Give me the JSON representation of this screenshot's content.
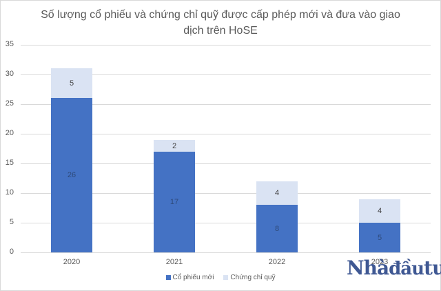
{
  "chart_data": {
    "type": "bar",
    "stacked": true,
    "title": "Số lượng cổ phiếu và chứng chỉ quỹ được cấp phép mới và đưa vào giao dịch trên HoSE",
    "title_lines": [
      "Số lượng cổ phiếu và chứng chỉ quỹ được cấp phép mới và đưa vào giao",
      "dịch trên HoSE"
    ],
    "categories": [
      "2020",
      "2021",
      "2022",
      "2023"
    ],
    "series": [
      {
        "name": "Cổ phiếu mới",
        "color": "#4472C4",
        "values": [
          26,
          17,
          8,
          5
        ]
      },
      {
        "name": "Chứng chỉ quỹ",
        "color": "#DAE3F3",
        "values": [
          5,
          2,
          4,
          4
        ]
      }
    ],
    "xlabel": "",
    "ylabel": "",
    "ylim": [
      0,
      35
    ],
    "yticks": [
      "0",
      "5",
      "10",
      "15",
      "20",
      "25",
      "30",
      "35"
    ],
    "grid": true,
    "legend_position": "bottom"
  },
  "legend": [
    {
      "label": "Cổ phiếu mới",
      "color": "#4472C4"
    },
    {
      "label": "Chứng chỉ quỹ",
      "color": "#DAE3F3"
    }
  ],
  "watermark": "Nhadautu"
}
